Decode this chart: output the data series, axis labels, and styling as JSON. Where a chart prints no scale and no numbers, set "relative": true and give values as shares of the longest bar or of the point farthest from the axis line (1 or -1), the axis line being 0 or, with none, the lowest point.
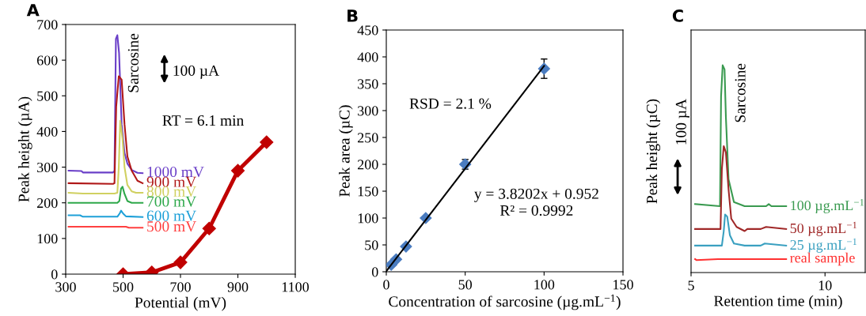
{
  "chart_data": [
    {
      "type": "line",
      "title": "A",
      "xlabel": "Potential (mV)",
      "ylabel": "Peak height (µA)",
      "xlim": [
        300,
        1100
      ],
      "xticks": [
        300,
        500,
        700,
        900,
        {
          "value": 1100,
          "label": "1100"
        }
      ],
      "ylim": [
        0,
        700
      ],
      "yticks": [
        0,
        100,
        200,
        300,
        400,
        500,
        600,
        700
      ],
      "grid": false,
      "legend": false,
      "annotations": [
        "Sarcosine",
        "100 µA",
        "RT = 6.1 min"
      ],
      "series": [
        {
          "name": "1000 mV",
          "color": "#6a3fc8",
          "marker": "none",
          "x": [
            310,
            355,
            360,
            465,
            470,
            475,
            480,
            486,
            495,
            505,
            515,
            530,
            550,
            568
          ],
          "values": [
            290,
            289,
            285,
            285,
            290,
            660,
            670,
            620,
            420,
            340,
            310,
            292,
            284,
            283
          ]
        },
        {
          "name": "900 mV",
          "color": "#b01818",
          "marker": "none",
          "x": [
            310,
            465,
            470,
            476,
            485,
            495,
            505,
            515,
            530,
            550,
            568
          ],
          "values": [
            255,
            253,
            255,
            470,
            555,
            545,
            420,
            330,
            290,
            262,
            255
          ]
        },
        {
          "name": "800 mV",
          "color": "#d0d060",
          "marker": "none",
          "x": [
            310,
            360,
            470,
            480,
            485,
            490,
            498,
            505,
            515,
            530,
            545,
            568
          ],
          "values": [
            228,
            226,
            226,
            228,
            300,
            430,
            380,
            300,
            250,
            232,
            228,
            228
          ]
        },
        {
          "name": "700 mV",
          "color": "#2ea84a",
          "marker": "none",
          "x": [
            310,
            480,
            487,
            493,
            498,
            505,
            515,
            530,
            568
          ],
          "values": [
            200,
            200,
            205,
            240,
            245,
            225,
            205,
            200,
            200
          ]
        },
        {
          "name": "600 mV",
          "color": "#1ea0d8",
          "marker": "none",
          "x": [
            310,
            350,
            360,
            480,
            488,
            493,
            500,
            510,
            568
          ],
          "values": [
            165,
            165,
            161,
            161,
            170,
            178,
            170,
            162,
            160
          ]
        },
        {
          "name": "500 mV",
          "color": "#ff4040",
          "marker": "none",
          "x": [
            310,
            510,
            520,
            568
          ],
          "values": [
            133,
            133,
            130,
            130
          ]
        },
        {
          "color": "#c00000",
          "marker": "diamond",
          "x": [
            500,
            600,
            700,
            800,
            900,
            1000
          ],
          "values": [
            0,
            5,
            33,
            128,
            290,
            370
          ]
        }
      ]
    },
    {
      "type": "scatter",
      "title": "B",
      "xlabel": "Concentration of sarcosine (µg.mL$^{−1}$)",
      "ylabel": "Peak area (µC)",
      "xlim": [
        0,
        150
      ],
      "xticks": [
        0,
        50,
        100,
        150
      ],
      "ylim": [
        0,
        450
      ],
      "yticks": [
        0,
        50,
        100,
        150,
        200,
        250,
        300,
        350,
        400,
        450
      ],
      "grid": false,
      "legend": false,
      "annotations": [
        "RSD = 2.1 %",
        "y = 3.8202x + 0.952",
        "R² = 0.9992"
      ],
      "series": [
        {
          "color": "#4a7cc0",
          "marker": "diamond",
          "x": [
            3.125,
            6.25,
            12.5,
            25,
            50,
            100
          ],
          "values": [
            13,
            23,
            47,
            100,
            200,
            378
          ],
          "errors": [
            null,
            null,
            null,
            null,
            9,
            18
          ]
        },
        {
          "type": "line",
          "color": "#000000",
          "marker": "none",
          "x": [
            0,
            100
          ],
          "values": [
            1,
            383
          ]
        }
      ]
    },
    {
      "type": "line",
      "title": "C",
      "xlabel": "Retention time (min)",
      "ylabel": "Peak height (µC)",
      "relative": true,
      "xlim": [
        5,
        11.5
      ],
      "xticks": [
        5,
        10
      ],
      "tick_labels": "x",
      "grid": false,
      "legend": false,
      "annotations": [
        "Sarcosine",
        "100 µA"
      ],
      "series": [
        {
          "name": "100 µg.mL$^{−1}$",
          "color": "#3a9a50",
          "marker": "none",
          "x": [
            5.15,
            6.08,
            6.12,
            6.18,
            6.25,
            6.3,
            6.4,
            6.6,
            7.0,
            7.8,
            7.9,
            8.0,
            8.55
          ],
          "values": [
            0.33,
            0.32,
            0.85,
            1.0,
            0.98,
            0.75,
            0.45,
            0.34,
            0.32,
            0.32,
            0.33,
            0.32,
            0.32
          ]
        },
        {
          "name": "50 µg.mL$^{−1}$",
          "color": "#a02828",
          "marker": "none",
          "x": [
            5.15,
            6.1,
            6.15,
            6.22,
            6.3,
            6.4,
            6.5,
            6.7,
            7.0,
            7.1,
            7.6,
            7.8,
            8.55
          ],
          "values": [
            0.21,
            0.21,
            0.5,
            0.61,
            0.58,
            0.4,
            0.26,
            0.22,
            0.2,
            0.21,
            0.21,
            0.22,
            0.21
          ]
        },
        {
          "name": "25 µg.mL$^{−1}$",
          "color": "#3aa0c0",
          "marker": "none",
          "x": [
            5.15,
            6.15,
            6.22,
            6.27,
            6.35,
            6.45,
            6.6,
            7.0,
            7.6,
            7.75,
            8.55
          ],
          "values": [
            0.13,
            0.13,
            0.2,
            0.28,
            0.27,
            0.18,
            0.14,
            0.13,
            0.13,
            0.14,
            0.13
          ]
        },
        {
          "name": "real sample",
          "color": "#ff3030",
          "marker": "none",
          "x": [
            5.15,
            5.2,
            6.0,
            8.55
          ],
          "values": [
            0.065,
            0.06,
            0.065,
            0.065
          ]
        }
      ]
    }
  ]
}
